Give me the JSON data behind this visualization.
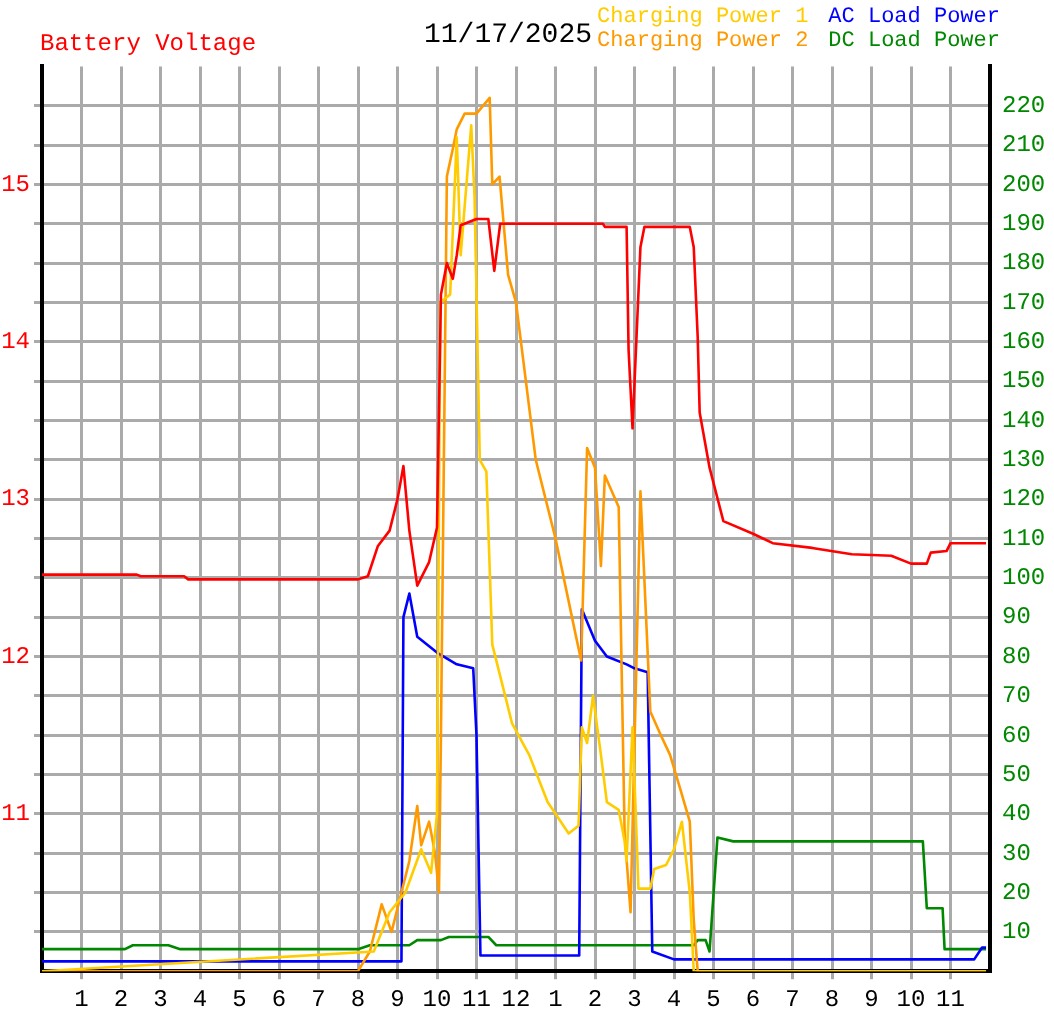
{
  "chart_data": {
    "type": "line",
    "title": "11/17/2025",
    "ylabel": "Battery Voltage",
    "xlim": [
      "2025-11-17T00:00",
      "2025-11-18T00:00"
    ],
    "xticks": [
      {
        "value": "2025-11-17T01:00",
        "label": "1"
      },
      {
        "value": "2025-11-17T02:00",
        "label": "2"
      },
      {
        "value": "2025-11-17T03:00",
        "label": "3"
      },
      {
        "value": "2025-11-17T04:00",
        "label": "4"
      },
      {
        "value": "2025-11-17T05:00",
        "label": "5"
      },
      {
        "value": "2025-11-17T06:00",
        "label": "6"
      },
      {
        "value": "2025-11-17T07:00",
        "label": "7"
      },
      {
        "value": "2025-11-17T08:00",
        "label": "8"
      },
      {
        "value": "2025-11-17T09:00",
        "label": "9"
      },
      {
        "value": "2025-11-17T10:00",
        "label": "10"
      },
      {
        "value": "2025-11-17T11:00",
        "label": "11"
      },
      {
        "value": "2025-11-17T12:00",
        "label": "12"
      },
      {
        "value": "2025-11-17T13:00",
        "label": "1"
      },
      {
        "value": "2025-11-17T14:00",
        "label": "2"
      },
      {
        "value": "2025-11-17T15:00",
        "label": "3"
      },
      {
        "value": "2025-11-17T16:00",
        "label": "4"
      },
      {
        "value": "2025-11-17T17:00",
        "label": "5"
      },
      {
        "value": "2025-11-17T18:00",
        "label": "6"
      },
      {
        "value": "2025-11-17T19:00",
        "label": "7"
      },
      {
        "value": "2025-11-17T20:00",
        "label": "8"
      },
      {
        "value": "2025-11-17T21:00",
        "label": "9"
      },
      {
        "value": "2025-11-17T22:00",
        "label": "10"
      },
      {
        "value": "2025-11-17T23:00",
        "label": "11"
      }
    ],
    "ylim": [
      10,
      15.75
    ],
    "yticks": [
      {
        "value": 10.25,
        "label": null
      },
      {
        "value": 10.5,
        "label": null
      },
      {
        "value": 10.75,
        "label": null
      },
      11,
      {
        "value": 11.25,
        "label": null
      },
      {
        "value": 11.5,
        "label": null
      },
      {
        "value": 11.75,
        "label": null
      },
      12,
      {
        "value": 12.25,
        "label": null
      },
      {
        "value": 12.5,
        "label": null
      },
      {
        "value": 12.75,
        "label": null
      },
      13,
      {
        "value": 13.25,
        "label": null
      },
      {
        "value": 13.5,
        "label": null
      },
      {
        "value": 13.75,
        "label": null
      },
      14,
      {
        "value": 14.25,
        "label": null
      },
      {
        "value": 14.5,
        "label": null
      },
      {
        "value": 14.75,
        "label": null
      },
      15,
      {
        "value": 15.25,
        "label": null
      },
      {
        "value": 15.5,
        "label": null
      }
    ],
    "y2lim": [
      0,
      230
    ],
    "y2ticks": [
      10,
      20,
      30,
      40,
      50,
      60,
      70,
      80,
      90,
      100,
      110,
      120,
      130,
      140,
      150,
      160,
      170,
      180,
      190,
      200,
      210,
      220
    ],
    "grid": true,
    "legend": "top right",
    "marker": "none",
    "line_style": "solid",
    "series": [
      {
        "color": "#ff0000",
        "axis": "y",
        "x": [
          "2025-11-17T00:00",
          "2025-11-17T02:24",
          "2025-11-17T02:30",
          "2025-11-17T03:36",
          "2025-11-17T03:42",
          "2025-11-17T08:00",
          "2025-11-17T08:15",
          "2025-11-17T08:30",
          "2025-11-17T08:48",
          "2025-11-17T09:00",
          "2025-11-17T09:09",
          "2025-11-17T09:18",
          "2025-11-17T09:30",
          "2025-11-17T09:48",
          "2025-11-17T10:00",
          "2025-11-17T10:06",
          "2025-11-17T10:15",
          "2025-11-17T10:24",
          "2025-11-17T10:30",
          "2025-11-17T10:36",
          "2025-11-17T11:00",
          "2025-11-17T11:18",
          "2025-11-17T11:27",
          "2025-11-17T11:36",
          "2025-11-17T14:12",
          "2025-11-17T14:15",
          "2025-11-17T14:48",
          "2025-11-17T14:51",
          "2025-11-17T14:57",
          "2025-11-17T15:09",
          "2025-11-17T15:15",
          "2025-11-17T16:24",
          "2025-11-17T16:30",
          "2025-11-17T16:36",
          "2025-11-17T16:39",
          "2025-11-17T16:54",
          "2025-11-17T17:15",
          "2025-11-17T18:00",
          "2025-11-17T18:30",
          "2025-11-17T19:30",
          "2025-11-17T20:30",
          "2025-11-17T21:30",
          "2025-11-17T22:00",
          "2025-11-17T22:24",
          "2025-11-17T22:30",
          "2025-11-17T22:54",
          "2025-11-17T23:00",
          "2025-11-17T23:54"
        ],
        "values": [
          12.52,
          12.52,
          12.51,
          12.51,
          12.49,
          12.49,
          12.51,
          12.7,
          12.8,
          13.0,
          13.21,
          12.8,
          12.45,
          12.6,
          12.82,
          14.3,
          14.5,
          14.4,
          14.55,
          14.74,
          14.78,
          14.78,
          14.45,
          14.75,
          14.75,
          14.73,
          14.73,
          13.95,
          13.45,
          14.6,
          14.73,
          14.73,
          14.6,
          14.03,
          13.55,
          13.2,
          12.86,
          12.78,
          12.72,
          12.69,
          12.65,
          12.64,
          12.59,
          12.59,
          12.66,
          12.67,
          12.72,
          12.72
        ]
      },
      {
        "name": "Charging Power 1",
        "color": "#ffcc00",
        "axis": "y2",
        "x": [
          "2025-11-17T00:00",
          "2025-11-17T08:24",
          "2025-11-17T08:48",
          "2025-11-17T09:12",
          "2025-11-17T09:36",
          "2025-11-17T09:51",
          "2025-11-17T10:00",
          "2025-11-17T10:05",
          "2025-11-17T10:20",
          "2025-11-17T10:30",
          "2025-11-17T10:36",
          "2025-11-17T10:52",
          "2025-11-17T10:57",
          "2025-11-17T11:05",
          "2025-11-17T11:15",
          "2025-11-17T11:24",
          "2025-11-17T11:54",
          "2025-11-17T12:20",
          "2025-11-17T12:48",
          "2025-11-17T13:20",
          "2025-11-17T13:35",
          "2025-11-17T13:40",
          "2025-11-17T13:48",
          "2025-11-17T13:57",
          "2025-11-17T14:09",
          "2025-11-17T14:18",
          "2025-11-17T14:36",
          "2025-11-17T14:45",
          "2025-11-17T14:48",
          "2025-11-17T14:57",
          "2025-11-17T15:03",
          "2025-11-17T15:06",
          "2025-11-17T15:24",
          "2025-11-17T15:30",
          "2025-11-17T15:48",
          "2025-11-17T16:00",
          "2025-11-17T16:12",
          "2025-11-17T16:24",
          "2025-11-17T16:30",
          "2025-11-17T23:54"
        ],
        "values": [
          0,
          5,
          15,
          20,
          31,
          25,
          40,
          170,
          172,
          212,
          182,
          215,
          197,
          130,
          127,
          83,
          63,
          55,
          43,
          35,
          37,
          62,
          58,
          70,
          55,
          43,
          41,
          33,
          28,
          62,
          35,
          21,
          21,
          26,
          27,
          31,
          38,
          20,
          0,
          0
        ]
      },
      {
        "name": "Charging Power 2",
        "color": "#ff9900",
        "axis": "y2",
        "x": [
          "2025-11-17T00:00",
          "2025-11-17T08:00",
          "2025-11-17T08:18",
          "2025-11-17T08:36",
          "2025-11-17T08:51",
          "2025-11-17T09:06",
          "2025-11-17T09:18",
          "2025-11-17T09:30",
          "2025-11-17T09:36",
          "2025-11-17T09:48",
          "2025-11-17T09:57",
          "2025-11-17T10:03",
          "2025-11-17T10:06",
          "2025-11-17T10:15",
          "2025-11-17T10:24",
          "2025-11-17T10:30",
          "2025-11-17T10:42",
          "2025-11-17T11:00",
          "2025-11-17T11:20",
          "2025-11-17T11:24",
          "2025-11-17T11:35",
          "2025-11-17T11:48",
          "2025-11-17T12:00",
          "2025-11-17T12:30",
          "2025-11-17T13:00",
          "2025-11-17T13:30",
          "2025-11-17T13:39",
          "2025-11-17T13:48",
          "2025-11-17T14:00",
          "2025-11-17T14:09",
          "2025-11-17T14:15",
          "2025-11-17T14:36",
          "2025-11-17T14:45",
          "2025-11-17T14:54",
          "2025-11-17T15:09",
          "2025-11-17T15:24",
          "2025-11-17T15:40",
          "2025-11-17T15:54",
          "2025-11-17T16:10",
          "2025-11-17T16:24",
          "2025-11-17T16:30",
          "2025-11-17T16:36",
          "2025-11-17T23:54"
        ],
        "values": [
          0,
          0,
          5,
          17,
          10,
          20,
          28,
          42,
          32,
          38,
          30,
          20,
          60,
          202,
          209,
          214,
          218,
          218,
          222,
          200,
          202,
          177,
          170,
          130,
          110,
          86,
          79,
          133,
          128,
          103,
          126,
          118,
          35,
          15,
          122,
          66,
          60,
          55,
          46,
          38,
          13,
          0,
          0
        ]
      },
      {
        "name": "AC Load Power",
        "color": "#0000ff",
        "axis": "y2",
        "x": [
          "2025-11-17T00:00",
          "2025-11-17T09:06",
          "2025-11-17T09:09",
          "2025-11-17T09:18",
          "2025-11-17T09:30",
          "2025-11-17T10:00",
          "2025-11-17T10:30",
          "2025-11-17T10:55",
          "2025-11-17T11:00",
          "2025-11-17T11:06",
          "2025-11-17T13:36",
          "2025-11-17T13:40",
          "2025-11-17T14:00",
          "2025-11-17T14:18",
          "2025-11-17T14:48",
          "2025-11-17T15:00",
          "2025-11-17T15:20",
          "2025-11-17T15:27",
          "2025-11-17T16:00",
          "2025-11-17T23:36",
          "2025-11-17T23:48",
          "2025-11-17T23:54"
        ],
        "values": [
          2.5,
          2.5,
          90,
          96,
          85,
          81,
          78,
          77,
          60,
          4,
          4,
          92,
          84,
          80,
          78,
          77,
          76,
          5,
          3,
          3,
          6,
          6
        ]
      },
      {
        "name": "DC Load Power",
        "color": "#008800",
        "axis": "y2",
        "x": [
          "2025-11-17T00:00",
          "2025-11-17T02:06",
          "2025-11-17T02:18",
          "2025-11-17T03:12",
          "2025-11-17T03:30",
          "2025-11-17T08:00",
          "2025-11-17T08:18",
          "2025-11-17T09:18",
          "2025-11-17T09:30",
          "2025-11-17T10:06",
          "2025-11-17T10:18",
          "2025-11-17T11:18",
          "2025-11-17T11:30",
          "2025-11-17T16:30",
          "2025-11-17T16:36",
          "2025-11-17T16:48",
          "2025-11-17T16:54",
          "2025-11-17T17:06",
          "2025-11-17T17:30",
          "2025-11-17T22:18",
          "2025-11-17T22:24",
          "2025-11-17T22:48",
          "2025-11-17T22:51",
          "2025-11-17T23:54"
        ],
        "values": [
          5.6,
          5.6,
          6.6,
          6.6,
          5.6,
          5.6,
          6.6,
          6.6,
          7.9,
          7.9,
          8.7,
          8.7,
          6.6,
          6.6,
          7.9,
          7.9,
          5,
          34,
          33,
          33,
          16,
          16,
          5.6,
          5.6
        ]
      }
    ]
  }
}
